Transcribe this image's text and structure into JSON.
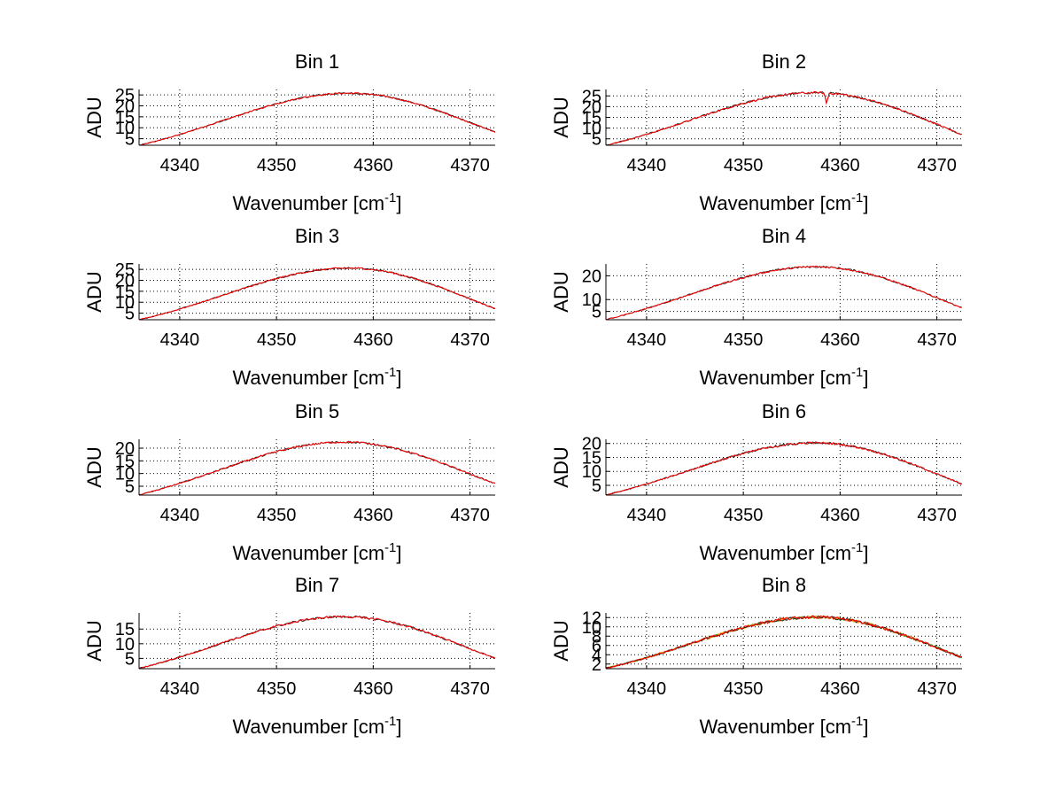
{
  "chart_data": [
    {
      "type": "line",
      "title": "Bin 1",
      "xlabel": "Wavenumber [cm",
      "xlabel_sup": "-1",
      "xlabel_end": "]",
      "ylabel": "ADU",
      "xlim": [
        4335.8,
        4372.6
      ],
      "ylim": [
        2,
        27.5
      ],
      "xticks": [
        4340,
        4350,
        4360,
        4370
      ],
      "yticks": [
        5,
        10,
        15,
        20,
        25
      ],
      "grid": true,
      "peak_x": 4357.5,
      "peak_y": 25.8,
      "start_y": 2.0,
      "end_y": 8.0,
      "noise": 0.3,
      "dip": null,
      "series": [
        {
          "name": "trace-dark",
          "color": "#222222"
        },
        {
          "name": "trace-red",
          "color": "#ff0000"
        }
      ]
    },
    {
      "type": "line",
      "title": "Bin 2",
      "xlabel": "Wavenumber [cm",
      "xlabel_sup": "-1",
      "xlabel_end": "]",
      "ylabel": "ADU",
      "xlim": [
        4335.8,
        4372.6
      ],
      "ylim": [
        2,
        28
      ],
      "xticks": [
        4340,
        4350,
        4360,
        4370
      ],
      "yticks": [
        5,
        10,
        15,
        20,
        25
      ],
      "grid": true,
      "peak_x": 4357.5,
      "peak_y": 26.5,
      "start_y": 2.0,
      "end_y": 7.0,
      "noise": 0.4,
      "dip": {
        "x": 4358.6,
        "depth": 5
      },
      "series": [
        {
          "name": "trace-dark",
          "color": "#222222"
        },
        {
          "name": "trace-red",
          "color": "#ff0000"
        }
      ]
    },
    {
      "type": "line",
      "title": "Bin 3",
      "xlabel": "Wavenumber [cm",
      "xlabel_sup": "-1",
      "xlabel_end": "]",
      "ylabel": "ADU",
      "xlim": [
        4335.8,
        4372.6
      ],
      "ylim": [
        2,
        27.5
      ],
      "xticks": [
        4340,
        4350,
        4360,
        4370
      ],
      "yticks": [
        5,
        10,
        15,
        20,
        25
      ],
      "grid": true,
      "peak_x": 4357.5,
      "peak_y": 25.6,
      "start_y": 2.0,
      "end_y": 7.0,
      "noise": 0.3,
      "dip": null,
      "series": [
        {
          "name": "trace-dark",
          "color": "#222222"
        },
        {
          "name": "trace-red",
          "color": "#ff0000"
        }
      ]
    },
    {
      "type": "line",
      "title": "Bin 4",
      "xlabel": "Wavenumber [cm",
      "xlabel_sup": "-1",
      "xlabel_end": "]",
      "ylabel": "ADU",
      "xlim": [
        4335.8,
        4372.6
      ],
      "ylim": [
        1.5,
        25
      ],
      "xticks": [
        4340,
        4350,
        4360,
        4370
      ],
      "yticks": [
        5,
        10,
        20
      ],
      "grid": true,
      "peak_x": 4357.5,
      "peak_y": 23.8,
      "start_y": 1.6,
      "end_y": 6.5,
      "noise": 0.3,
      "dip": null,
      "series": [
        {
          "name": "trace-dark",
          "color": "#222222"
        },
        {
          "name": "trace-red",
          "color": "#ff0000"
        }
      ]
    },
    {
      "type": "line",
      "title": "Bin 5",
      "xlabel": "Wavenumber [cm",
      "xlabel_sup": "-1",
      "xlabel_end": "]",
      "ylabel": "ADU",
      "xlim": [
        4335.8,
        4372.6
      ],
      "ylim": [
        1.5,
        23.5
      ],
      "xticks": [
        4340,
        4350,
        4360,
        4370
      ],
      "yticks": [
        5,
        10,
        15,
        20
      ],
      "grid": true,
      "peak_x": 4357.0,
      "peak_y": 22.4,
      "start_y": 1.6,
      "end_y": 6.0,
      "noise": 0.3,
      "dip": null,
      "series": [
        {
          "name": "trace-dark",
          "color": "#222222"
        },
        {
          "name": "trace-red",
          "color": "#ff0000"
        }
      ]
    },
    {
      "type": "line",
      "title": "Bin 6",
      "xlabel": "Wavenumber [cm",
      "xlabel_sup": "-1",
      "xlabel_end": "]",
      "ylabel": "ADU",
      "xlim": [
        4335.8,
        4372.6
      ],
      "ylim": [
        1.5,
        21.5
      ],
      "xticks": [
        4340,
        4350,
        4360,
        4370
      ],
      "yticks": [
        5,
        10,
        15,
        20
      ],
      "grid": true,
      "peak_x": 4357.5,
      "peak_y": 20.2,
      "start_y": 1.6,
      "end_y": 5.5,
      "noise": 0.3,
      "dip": null,
      "series": [
        {
          "name": "trace-dark",
          "color": "#222222"
        },
        {
          "name": "trace-red",
          "color": "#ff0000"
        }
      ]
    },
    {
      "type": "line",
      "title": "Bin 7",
      "xlabel": "Wavenumber [cm",
      "xlabel_sup": "-1",
      "xlabel_end": "]",
      "ylabel": "ADU",
      "xlim": [
        4335.8,
        4372.6
      ],
      "ylim": [
        1.5,
        20.5
      ],
      "xticks": [
        4340,
        4350,
        4360,
        4370
      ],
      "yticks": [
        5,
        10,
        15
      ],
      "grid": true,
      "peak_x": 4357.0,
      "peak_y": 19.2,
      "start_y": 1.6,
      "end_y": 5.0,
      "noise": 0.3,
      "dip": null,
      "series": [
        {
          "name": "trace-dark",
          "color": "#222222"
        },
        {
          "name": "trace-red",
          "color": "#ff0000"
        }
      ]
    },
    {
      "type": "line",
      "title": "Bin 8",
      "xlabel": "Wavenumber [cm",
      "xlabel_sup": "-1",
      "xlabel_end": "]",
      "ylabel": "ADU",
      "xlim": [
        4335.8,
        4372.6
      ],
      "ylim": [
        1,
        13
      ],
      "xticks": [
        4340,
        4350,
        4360,
        4370
      ],
      "yticks": [
        2,
        4,
        6,
        8,
        10,
        12
      ],
      "grid": true,
      "peak_x": 4357.5,
      "peak_y": 12.1,
      "start_y": 1.1,
      "end_y": 3.4,
      "noise": 0.25,
      "dip": null,
      "series": [
        {
          "name": "trace-green",
          "color": "#33aa33"
        },
        {
          "name": "trace-orange",
          "color": "#ff9900"
        },
        {
          "name": "trace-dark",
          "color": "#222222"
        },
        {
          "name": "trace-red",
          "color": "#ff0000"
        }
      ]
    }
  ]
}
